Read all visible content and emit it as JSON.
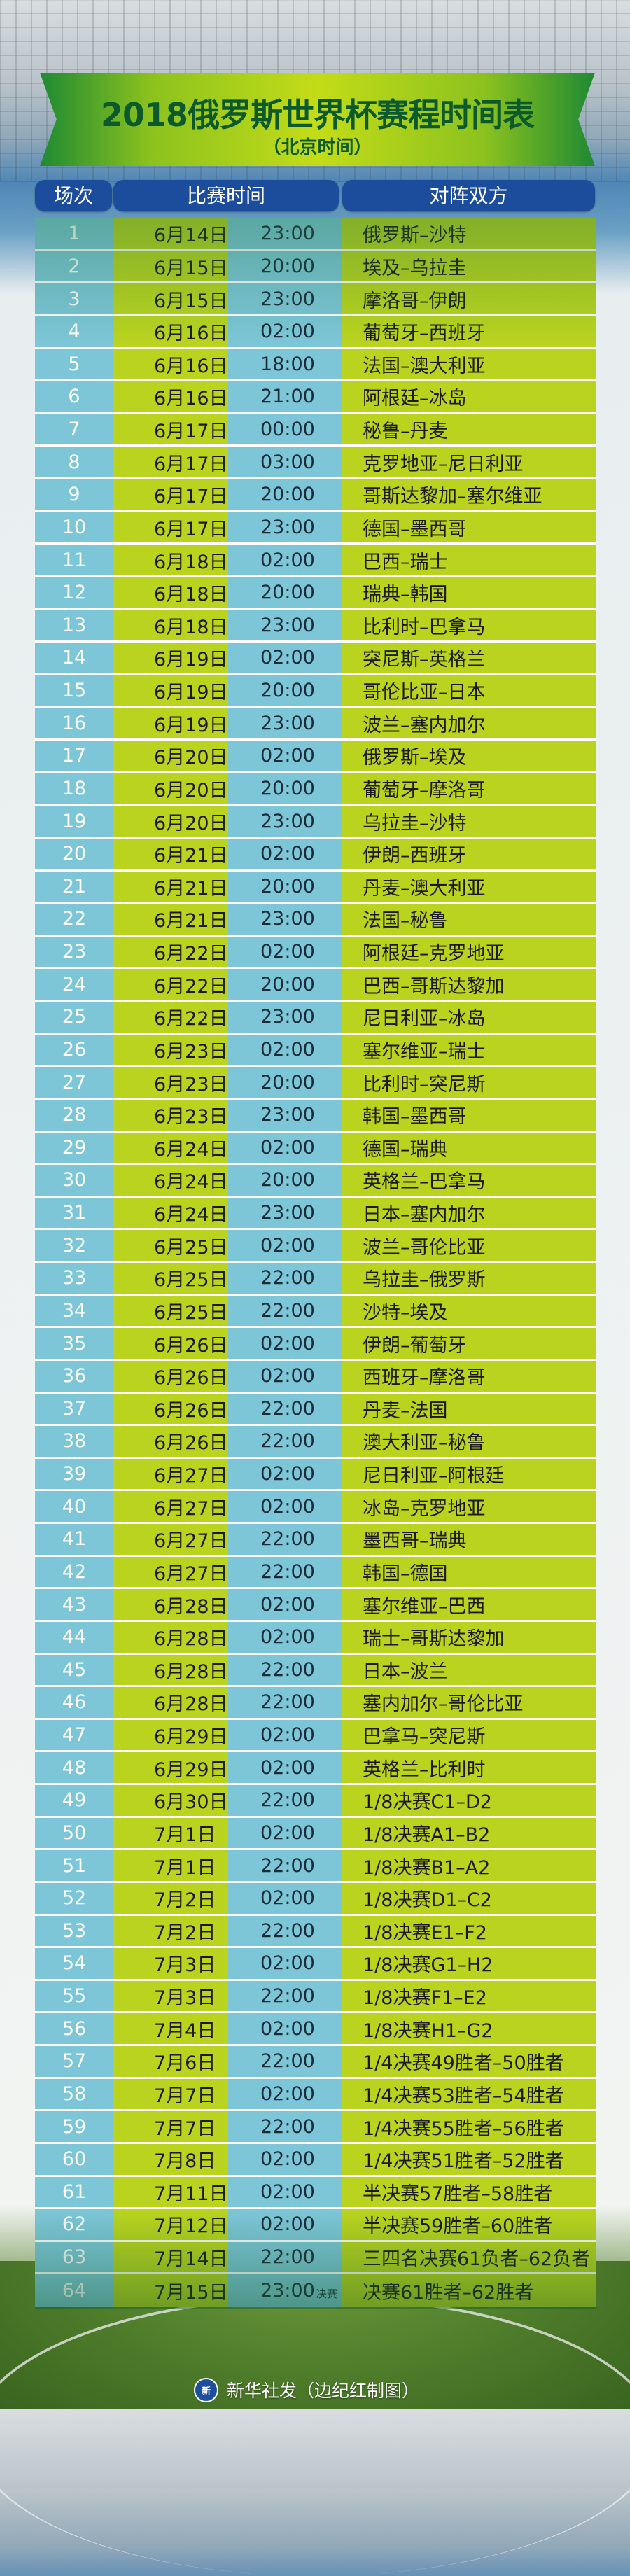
{
  "header": {
    "title": "2018俄罗斯世界杯赛程时间表",
    "subtitle": "（北京时间）",
    "columns": [
      "场次",
      "比赛时间",
      "对阵双方"
    ]
  },
  "colors": {
    "banner_green": "#8cc21e",
    "title_text": "#0c5a2c",
    "header_blue": "#1b4d9c",
    "cell_cyan": "#7cc6d8",
    "cell_lime": "#b9d31f"
  },
  "matches": [
    {
      "no": "1",
      "date": "6月14日",
      "time": "23:00",
      "teams": "俄罗斯–沙特"
    },
    {
      "no": "2",
      "date": "6月15日",
      "time": "20:00",
      "teams": "埃及–乌拉圭"
    },
    {
      "no": "3",
      "date": "6月15日",
      "time": "23:00",
      "teams": "摩洛哥–伊朗"
    },
    {
      "no": "4",
      "date": "6月16日",
      "time": "02:00",
      "teams": "葡萄牙–西班牙"
    },
    {
      "no": "5",
      "date": "6月16日",
      "time": "18:00",
      "teams": "法国–澳大利亚"
    },
    {
      "no": "6",
      "date": "6月16日",
      "time": "21:00",
      "teams": "阿根廷–冰岛"
    },
    {
      "no": "7",
      "date": "6月17日",
      "time": "00:00",
      "teams": "秘鲁–丹麦"
    },
    {
      "no": "8",
      "date": "6月17日",
      "time": "03:00",
      "teams": "克罗地亚–尼日利亚"
    },
    {
      "no": "9",
      "date": "6月17日",
      "time": "20:00",
      "teams": "哥斯达黎加–塞尔维亚"
    },
    {
      "no": "10",
      "date": "6月17日",
      "time": "23:00",
      "teams": "德国–墨西哥"
    },
    {
      "no": "11",
      "date": "6月18日",
      "time": "02:00",
      "teams": "巴西–瑞士"
    },
    {
      "no": "12",
      "date": "6月18日",
      "time": "20:00",
      "teams": "瑞典–韩国"
    },
    {
      "no": "13",
      "date": "6月18日",
      "time": "23:00",
      "teams": "比利时–巴拿马"
    },
    {
      "no": "14",
      "date": "6月19日",
      "time": "02:00",
      "teams": "突尼斯–英格兰"
    },
    {
      "no": "15",
      "date": "6月19日",
      "time": "20:00",
      "teams": "哥伦比亚–日本"
    },
    {
      "no": "16",
      "date": "6月19日",
      "time": "23:00",
      "teams": "波兰–塞内加尔"
    },
    {
      "no": "17",
      "date": "6月20日",
      "time": "02:00",
      "teams": "俄罗斯–埃及"
    },
    {
      "no": "18",
      "date": "6月20日",
      "time": "20:00",
      "teams": "葡萄牙–摩洛哥"
    },
    {
      "no": "19",
      "date": "6月20日",
      "time": "23:00",
      "teams": "乌拉圭–沙特"
    },
    {
      "no": "20",
      "date": "6月21日",
      "time": "02:00",
      "teams": "伊朗–西班牙"
    },
    {
      "no": "21",
      "date": "6月21日",
      "time": "20:00",
      "teams": "丹麦–澳大利亚"
    },
    {
      "no": "22",
      "date": "6月21日",
      "time": "23:00",
      "teams": "法国–秘鲁"
    },
    {
      "no": "23",
      "date": "6月22日",
      "time": "02:00",
      "teams": "阿根廷–克罗地亚"
    },
    {
      "no": "24",
      "date": "6月22日",
      "time": "20:00",
      "teams": "巴西–哥斯达黎加"
    },
    {
      "no": "25",
      "date": "6月22日",
      "time": "23:00",
      "teams": "尼日利亚–冰岛"
    },
    {
      "no": "26",
      "date": "6月23日",
      "time": "02:00",
      "teams": "塞尔维亚–瑞士"
    },
    {
      "no": "27",
      "date": "6月23日",
      "time": "20:00",
      "teams": "比利时–突尼斯"
    },
    {
      "no": "28",
      "date": "6月23日",
      "time": "23:00",
      "teams": "韩国–墨西哥"
    },
    {
      "no": "29",
      "date": "6月24日",
      "time": "02:00",
      "teams": "德国–瑞典"
    },
    {
      "no": "30",
      "date": "6月24日",
      "time": "20:00",
      "teams": "英格兰–巴拿马"
    },
    {
      "no": "31",
      "date": "6月24日",
      "time": "23:00",
      "teams": "日本–塞内加尔"
    },
    {
      "no": "32",
      "date": "6月25日",
      "time": "02:00",
      "teams": "波兰–哥伦比亚"
    },
    {
      "no": "33",
      "date": "6月25日",
      "time": "22:00",
      "teams": "乌拉圭–俄罗斯"
    },
    {
      "no": "34",
      "date": "6月25日",
      "time": "22:00",
      "teams": "沙特–埃及"
    },
    {
      "no": "35",
      "date": "6月26日",
      "time": "02:00",
      "teams": "伊朗–葡萄牙"
    },
    {
      "no": "36",
      "date": "6月26日",
      "time": "02:00",
      "teams": "西班牙–摩洛哥"
    },
    {
      "no": "37",
      "date": "6月26日",
      "time": "22:00",
      "teams": "丹麦–法国"
    },
    {
      "no": "38",
      "date": "6月26日",
      "time": "22:00",
      "teams": "澳大利亚–秘鲁"
    },
    {
      "no": "39",
      "date": "6月27日",
      "time": "02:00",
      "teams": "尼日利亚–阿根廷"
    },
    {
      "no": "40",
      "date": "6月27日",
      "time": "02:00",
      "teams": "冰岛–克罗地亚"
    },
    {
      "no": "41",
      "date": "6月27日",
      "time": "22:00",
      "teams": "墨西哥–瑞典"
    },
    {
      "no": "42",
      "date": "6月27日",
      "time": "22:00",
      "teams": "韩国–德国"
    },
    {
      "no": "43",
      "date": "6月28日",
      "time": "02:00",
      "teams": "塞尔维亚–巴西"
    },
    {
      "no": "44",
      "date": "6月28日",
      "time": "02:00",
      "teams": "瑞士–哥斯达黎加"
    },
    {
      "no": "45",
      "date": "6月28日",
      "time": "22:00",
      "teams": "日本–波兰"
    },
    {
      "no": "46",
      "date": "6月28日",
      "time": "22:00",
      "teams": "塞内加尔–哥伦比亚"
    },
    {
      "no": "47",
      "date": "6月29日",
      "time": "02:00",
      "teams": "巴拿马–突尼斯"
    },
    {
      "no": "48",
      "date": "6月29日",
      "time": "02:00",
      "teams": "英格兰–比利时"
    },
    {
      "no": "49",
      "date": "6月30日",
      "time": "22:00",
      "teams": "1/8决赛C1–D2"
    },
    {
      "no": "50",
      "date": "7月1日",
      "time": "02:00",
      "teams": "1/8决赛A1–B2"
    },
    {
      "no": "51",
      "date": "7月1日",
      "time": "22:00",
      "teams": "1/8决赛B1–A2"
    },
    {
      "no": "52",
      "date": "7月2日",
      "time": "02:00",
      "teams": "1/8决赛D1–C2"
    },
    {
      "no": "53",
      "date": "7月2日",
      "time": "22:00",
      "teams": "1/8决赛E1–F2"
    },
    {
      "no": "54",
      "date": "7月3日",
      "time": "02:00",
      "teams": "1/8决赛G1–H2"
    },
    {
      "no": "55",
      "date": "7月3日",
      "time": "22:00",
      "teams": "1/8决赛F1–E2"
    },
    {
      "no": "56",
      "date": "7月4日",
      "time": "02:00",
      "teams": "1/8决赛H1–G2"
    },
    {
      "no": "57",
      "date": "7月6日",
      "time": "22:00",
      "teams": "1/4决赛49胜者–50胜者"
    },
    {
      "no": "58",
      "date": "7月7日",
      "time": "02:00",
      "teams": "1/4决赛53胜者–54胜者"
    },
    {
      "no": "59",
      "date": "7月7日",
      "time": "22:00",
      "teams": "1/4决赛55胜者–56胜者"
    },
    {
      "no": "60",
      "date": "7月8日",
      "time": "02:00",
      "teams": "1/4决赛51胜者–52胜者"
    },
    {
      "no": "61",
      "date": "7月11日",
      "time": "02:00",
      "teams": "半决赛57胜者–58胜者"
    },
    {
      "no": "62",
      "date": "7月12日",
      "time": "02:00",
      "teams": "半决赛59胜者–60胜者"
    },
    {
      "no": "63",
      "date": "7月14日",
      "time": "22:00",
      "teams": "三四名决赛61负者–62负者"
    },
    {
      "no": "64",
      "date": "7月15日",
      "time": "23:00",
      "time_note": "决赛",
      "teams": "决赛61胜者–62胜者"
    }
  ],
  "footer": {
    "logo_text": "新华社",
    "credit": "新华社发（边纪红制图）"
  }
}
